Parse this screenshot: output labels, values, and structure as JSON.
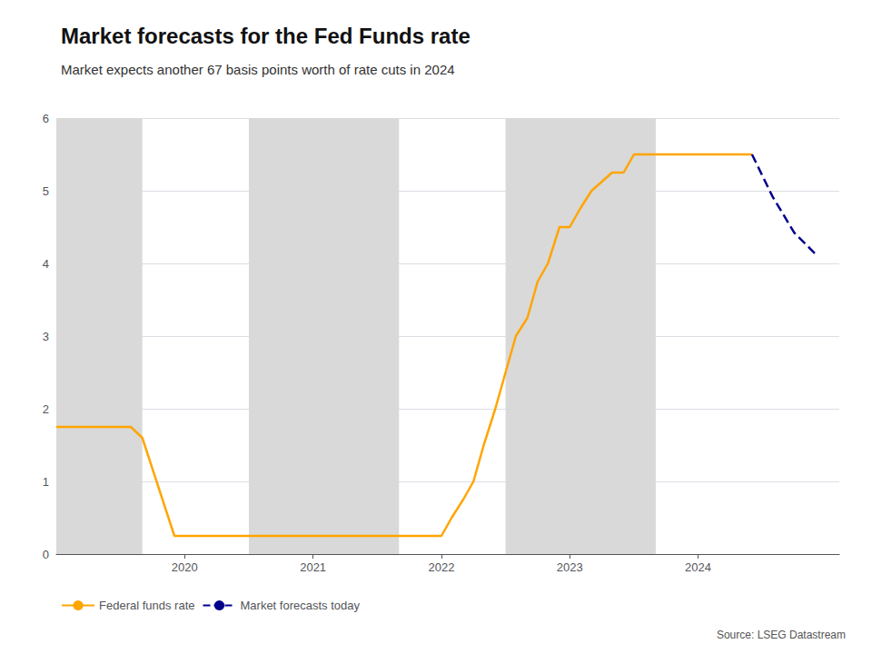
{
  "chart_data": {
    "type": "line",
    "title": "Market forecasts for the Fed Funds rate",
    "subtitle": "Market expects another 67 basis points worth of rate cuts in 2024",
    "source": "Source: LSEG Datastream",
    "xlim": [
      2019.0,
      2025.1
    ],
    "xticks": [
      2020,
      2021,
      2022,
      2023,
      2024
    ],
    "ylim": [
      0,
      6
    ],
    "yticks": [
      0,
      1,
      2,
      3,
      4,
      5,
      6
    ],
    "grid": true,
    "legend": "bottom",
    "shaded_regions": [
      [
        2019.0,
        2019.67
      ],
      [
        2020.5,
        2021.67
      ],
      [
        2022.5,
        2023.67
      ]
    ],
    "shaded_color": "#d9d9d9",
    "series": [
      {
        "name": "Federal funds rate",
        "color": "#FFA500",
        "line_style": "solid",
        "x": [
          2019.0,
          2019.58,
          2019.67,
          2019.92,
          2020.0,
          2020.33,
          2020.33,
          2021.58,
          2021.67,
          2021.92,
          2022.0,
          2022.08,
          2022.17,
          2022.25,
          2022.33,
          2022.42,
          2022.5,
          2022.58,
          2022.67,
          2022.75,
          2022.83,
          2022.92,
          2023.0,
          2023.08,
          2023.17,
          2023.33,
          2023.42,
          2023.5,
          2023.58,
          2023.67,
          2023.75,
          2024.42
        ],
        "values": [
          1.75,
          1.75,
          1.6,
          0.25,
          0.25,
          0.25,
          0.25,
          0.25,
          0.25,
          0.25,
          0.25,
          0.5,
          0.75,
          1.0,
          1.5,
          2.0,
          2.5,
          3.0,
          3.25,
          3.75,
          4.0,
          4.5,
          4.5,
          4.75,
          5.0,
          5.25,
          5.25,
          5.5,
          5.5,
          5.5,
          5.5,
          5.5
        ]
      },
      {
        "name": "Market forecasts today",
        "color": "#00008B",
        "line_style": "dashed",
        "x": [
          2024.42,
          2024.58,
          2024.75,
          2024.92
        ],
        "values": [
          5.5,
          4.92,
          4.42,
          4.12
        ]
      }
    ]
  }
}
